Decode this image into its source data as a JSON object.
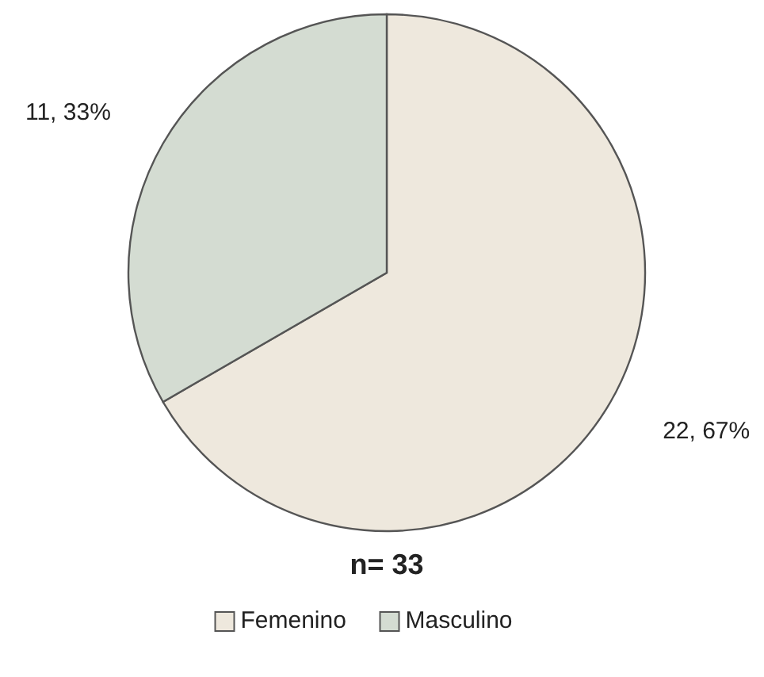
{
  "chart_data": {
    "type": "pie",
    "title": "n= 33",
    "categories": [
      "Femenino",
      "Masculino"
    ],
    "values": [
      22,
      11
    ],
    "colors": [
      "#eee8dd",
      "#d4dcd2"
    ],
    "value_labels": [
      "22, 67%",
      "11, 33%"
    ],
    "legend": "bottom"
  }
}
